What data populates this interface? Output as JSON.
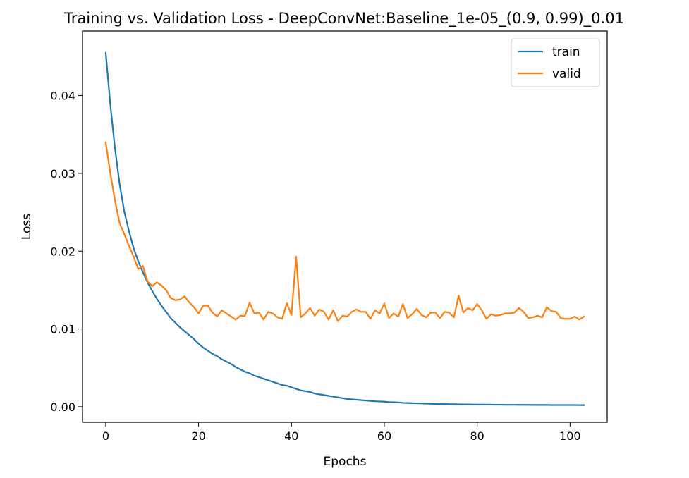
{
  "chart_data": {
    "type": "line",
    "title": "Training vs. Validation Loss - DeepConvNet:Baseline_1e-05_(0.9, 0.99)_0.01",
    "xlabel": "Epochs",
    "ylabel": "Loss",
    "xlim": [
      -5,
      108
    ],
    "ylim": [
      -0.002,
      0.0483
    ],
    "xticks": [
      0,
      20,
      40,
      60,
      80,
      100
    ],
    "xtick_labels": [
      "0",
      "20",
      "40",
      "60",
      "80",
      "100"
    ],
    "yticks": [
      0.0,
      0.01,
      0.02,
      0.03,
      0.04
    ],
    "ytick_labels": [
      "0.00",
      "0.01",
      "0.02",
      "0.03",
      "0.04"
    ],
    "grid": false,
    "legend_position": "top-right",
    "x": [
      0,
      1,
      2,
      3,
      4,
      5,
      6,
      7,
      8,
      9,
      10,
      11,
      12,
      13,
      14,
      15,
      16,
      17,
      18,
      19,
      20,
      21,
      22,
      23,
      24,
      25,
      26,
      27,
      28,
      29,
      30,
      31,
      32,
      33,
      34,
      35,
      36,
      37,
      38,
      39,
      40,
      41,
      42,
      43,
      44,
      45,
      46,
      47,
      48,
      49,
      50,
      51,
      52,
      53,
      54,
      55,
      56,
      57,
      58,
      59,
      60,
      61,
      62,
      63,
      64,
      65,
      66,
      67,
      68,
      69,
      70,
      71,
      72,
      73,
      74,
      75,
      76,
      77,
      78,
      79,
      80,
      81,
      82,
      83,
      84,
      85,
      86,
      87,
      88,
      89,
      90,
      91,
      92,
      93,
      94,
      95,
      96,
      97,
      98,
      99,
      100,
      101,
      102,
      103
    ],
    "series": [
      {
        "name": "train",
        "color": "#1f77b4",
        "values": [
          0.0455,
          0.0388,
          0.0332,
          0.0286,
          0.0251,
          0.0226,
          0.0204,
          0.0187,
          0.0173,
          0.016,
          0.0149,
          0.0139,
          0.013,
          0.0122,
          0.0114,
          0.0108,
          0.0102,
          0.0097,
          0.0092,
          0.0087,
          0.0081,
          0.0076,
          0.0072,
          0.0068,
          0.0065,
          0.0061,
          0.0058,
          0.0055,
          0.0051,
          0.0048,
          0.0045,
          0.0043,
          0.004,
          0.0038,
          0.0036,
          0.0034,
          0.0032,
          0.003,
          0.0028,
          0.0027,
          0.0025,
          0.0023,
          0.0021,
          0.002,
          0.0019,
          0.0017,
          0.0016,
          0.0015,
          0.0014,
          0.0013,
          0.0012,
          0.0011,
          0.001,
          0.00095,
          0.0009,
          0.00085,
          0.0008,
          0.00075,
          0.0007,
          0.00068,
          0.00065,
          0.0006,
          0.00058,
          0.00055,
          0.0005,
          0.00048,
          0.00046,
          0.00044,
          0.00042,
          0.0004,
          0.00038,
          0.00036,
          0.00035,
          0.00034,
          0.00033,
          0.00032,
          0.00031,
          0.0003,
          0.0003,
          0.00029,
          0.00028,
          0.00028,
          0.00027,
          0.00027,
          0.00026,
          0.00026,
          0.00025,
          0.00025,
          0.00025,
          0.00024,
          0.00024,
          0.00024,
          0.00023,
          0.00023,
          0.00023,
          0.00023,
          0.00022,
          0.00022,
          0.00022,
          0.00022,
          0.00022,
          0.00022,
          0.00021,
          0.00021
        ]
      },
      {
        "name": "valid",
        "color": "#ff7f0e",
        "values": [
          0.034,
          0.03,
          0.0265,
          0.0236,
          0.0222,
          0.0207,
          0.0193,
          0.0177,
          0.0181,
          0.0161,
          0.0155,
          0.016,
          0.0156,
          0.015,
          0.014,
          0.0137,
          0.0138,
          0.0142,
          0.0134,
          0.0128,
          0.012,
          0.013,
          0.013,
          0.0121,
          0.0116,
          0.0124,
          0.012,
          0.0116,
          0.0112,
          0.0117,
          0.0117,
          0.0134,
          0.012,
          0.0121,
          0.0112,
          0.0122,
          0.012,
          0.0115,
          0.0113,
          0.0133,
          0.0118,
          0.0193,
          0.0115,
          0.012,
          0.0127,
          0.0117,
          0.0125,
          0.0122,
          0.0112,
          0.0124,
          0.011,
          0.0117,
          0.0116,
          0.0122,
          0.0125,
          0.0122,
          0.0122,
          0.0113,
          0.0124,
          0.012,
          0.0133,
          0.0114,
          0.012,
          0.0116,
          0.0132,
          0.0114,
          0.0119,
          0.0126,
          0.0118,
          0.0115,
          0.0121,
          0.0121,
          0.0114,
          0.0122,
          0.0121,
          0.0115,
          0.0143,
          0.0121,
          0.0127,
          0.0124,
          0.0132,
          0.0124,
          0.0113,
          0.0119,
          0.0117,
          0.0118,
          0.012,
          0.012,
          0.0121,
          0.0127,
          0.0122,
          0.0114,
          0.0115,
          0.0117,
          0.0115,
          0.0128,
          0.0123,
          0.0122,
          0.0114,
          0.0113,
          0.0113,
          0.0116,
          0.0112,
          0.0116
        ]
      }
    ]
  }
}
